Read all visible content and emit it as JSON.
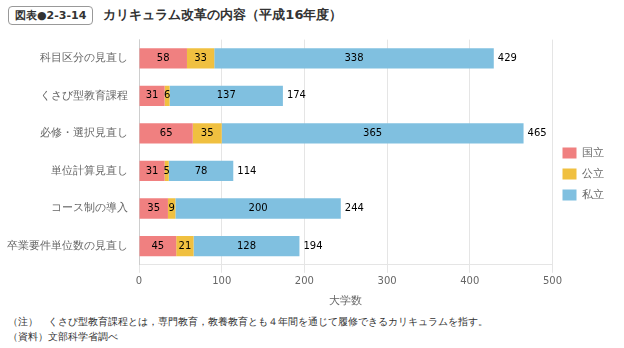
{
  "chart_data": {
    "type": "bar",
    "orientation": "horizontal",
    "stacked": true,
    "title": "カリキュラム改革の内容（平成16年度）",
    "annotations": [
      "図表●2-3-14",
      "（注）　くさび型教育課程とは，専門教育，教養教育とも４年間を通じて履修できるカリキュラムを指す。",
      "（資料）文部科学省調べ"
    ],
    "xlabel": "大学数",
    "categories": [
      "科目区分の見直し",
      "くさび型教育課程",
      "必修・選択見直し",
      "単位計算見直し",
      "コース制の導入",
      "卒業要件単位数の見直し"
    ],
    "series": [
      {
        "name": "国立",
        "color": "#f08080",
        "values": [
          58,
          31,
          65,
          31,
          35,
          45
        ]
      },
      {
        "name": "公立",
        "color": "#f0c040",
        "values": [
          33,
          6,
          35,
          5,
          9,
          21
        ]
      },
      {
        "name": "私立",
        "color": "#80c0e0",
        "values": [
          338,
          137,
          365,
          78,
          200,
          128
        ]
      }
    ],
    "totals": [
      429,
      174,
      465,
      114,
      244,
      194
    ],
    "xlim": [
      0,
      500
    ],
    "xticks": [
      0,
      100,
      200,
      300,
      400,
      500
    ],
    "grid": true,
    "legend": "right",
    "data_labels": true
  }
}
